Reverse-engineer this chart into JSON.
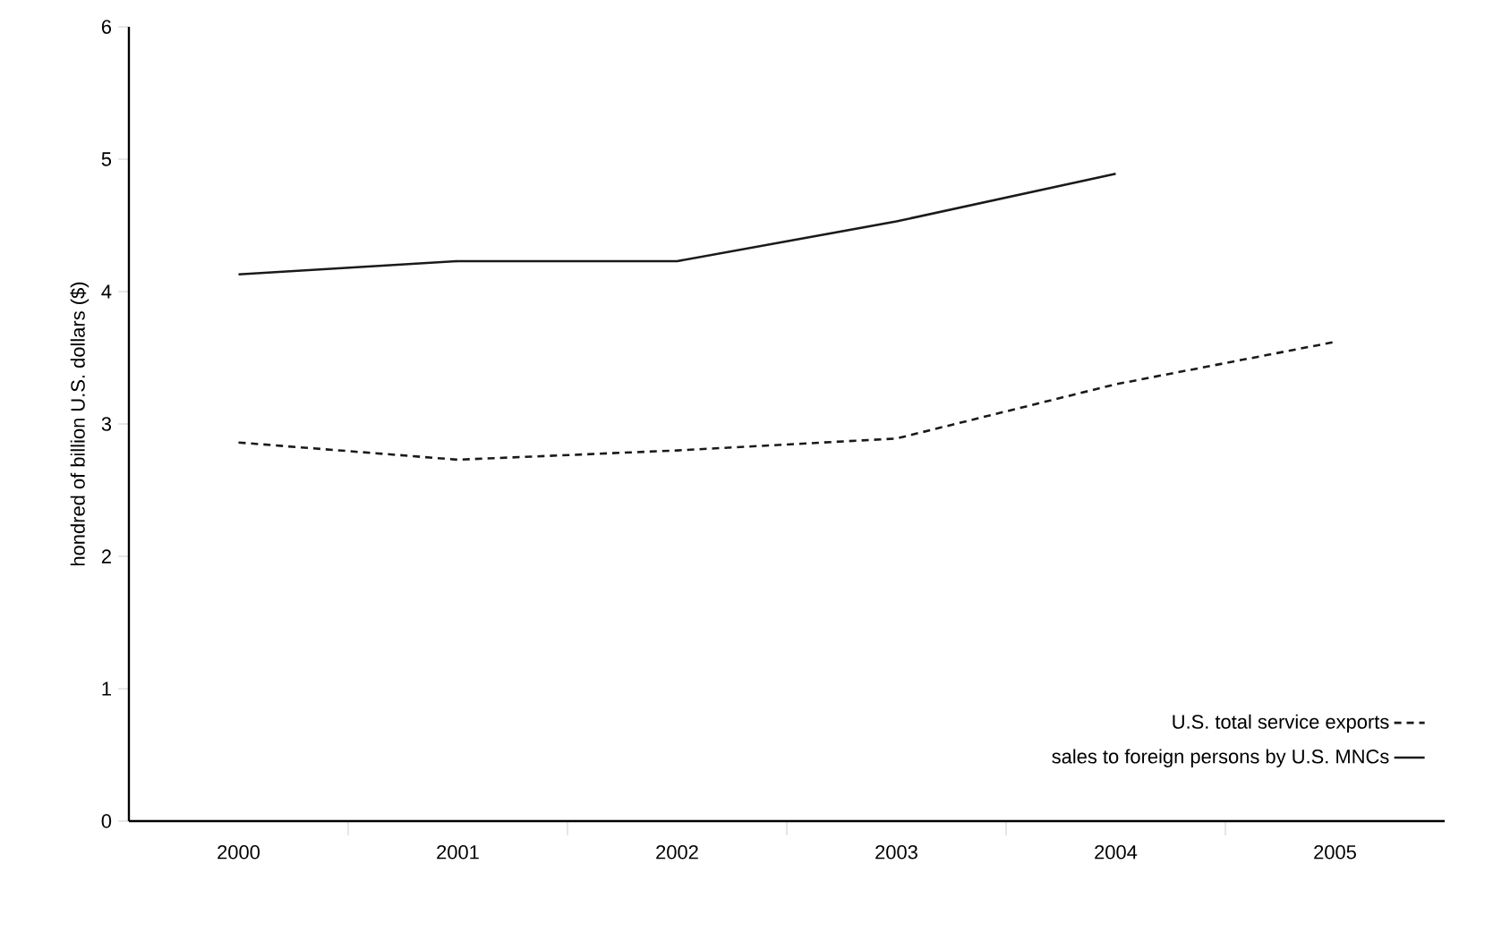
{
  "chart_data": {
    "type": "line",
    "ylabel": "hondred of billion U.S. dollars ($)",
    "categories": [
      "2000",
      "2001",
      "2002",
      "2003",
      "2004",
      "2005"
    ],
    "series": [
      {
        "name": "U.S. total service exports",
        "color": "#1a1a1a",
        "line_style": "dashed",
        "values": [
          2.86,
          2.73,
          2.8,
          2.89,
          3.3,
          3.62
        ]
      },
      {
        "name": "sales to foreign persons by U.S. MNCs",
        "color": "#1a1a1a",
        "line_style": "solid",
        "values": [
          4.13,
          4.23,
          4.23,
          4.53,
          4.89,
          null
        ]
      }
    ],
    "ylim": [
      0,
      6
    ],
    "yticks": [
      0,
      1,
      2,
      3,
      4,
      5,
      6
    ],
    "grid": false,
    "legend": "bottom right",
    "marker": "none"
  }
}
